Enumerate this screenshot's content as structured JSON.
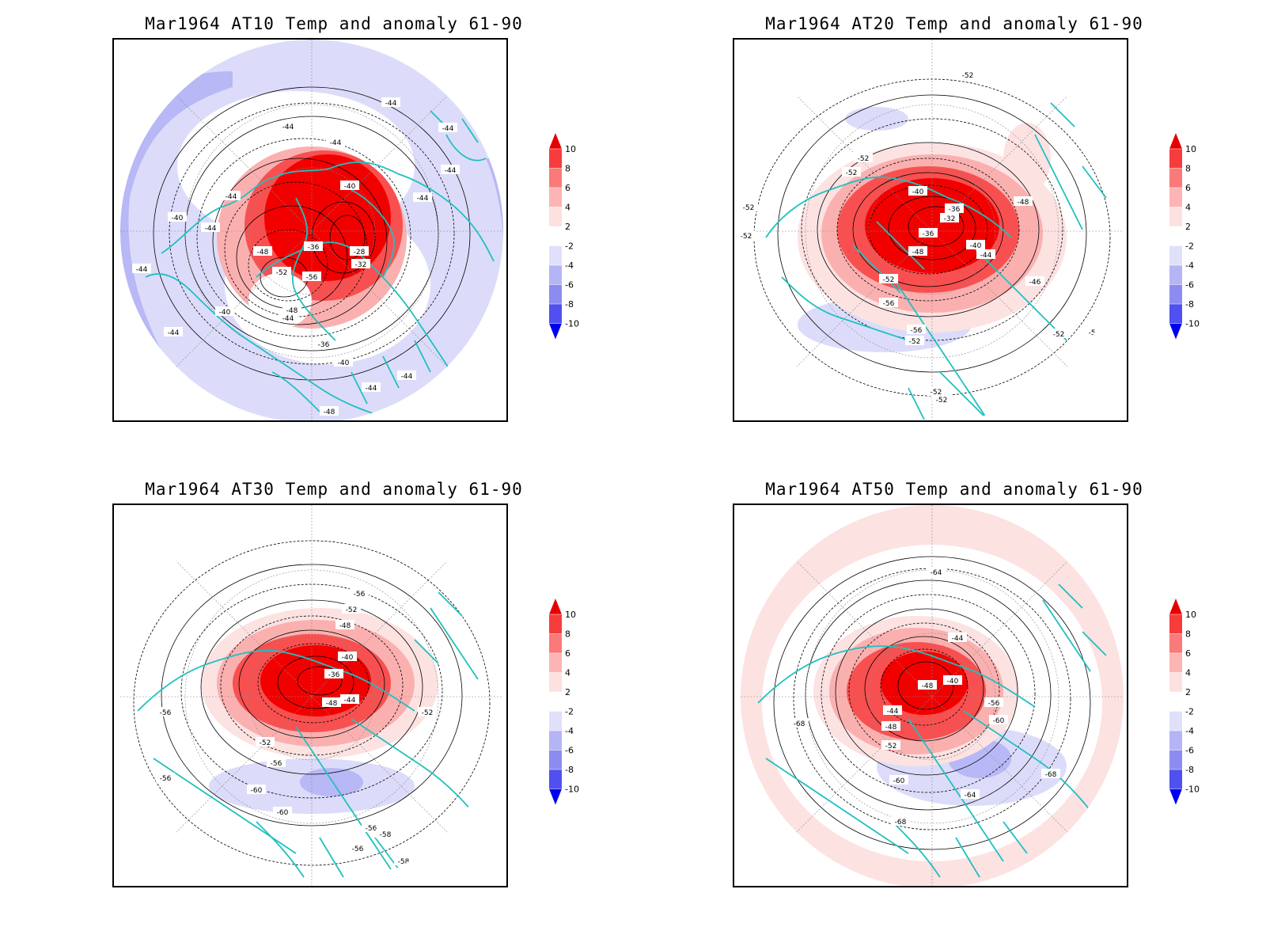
{
  "panels": [
    {
      "id": "p1",
      "title": "Mar1964 AT10 Temp and anomaly 61-90",
      "contour_labels": [
        "-44",
        "-44",
        "-44",
        "-44",
        "-44",
        "-44",
        "-40",
        "-44",
        "-40",
        "-44",
        "-48",
        "-36",
        "-28",
        "-32",
        "-52",
        "-56",
        "-40",
        "-48",
        "-44",
        "-44",
        "-36",
        "-40",
        "-44",
        "-44",
        "-48",
        "-44"
      ],
      "label_spots": [
        "label-a",
        "label-b",
        "label-c",
        "label-d",
        "label-e",
        "label-f",
        "label-g",
        "label-h",
        "label-i",
        "label-j",
        "label-k",
        "label-l",
        "label-m",
        "label-n",
        "label-o",
        "label-p",
        "label-q",
        "label-r",
        "label-s",
        "label-t",
        "label-u",
        "label-v",
        "label-w",
        "label-x",
        "label-y",
        "label-z"
      ]
    },
    {
      "id": "p2",
      "title": "Mar1964 AT20 Temp and anomaly 61-90",
      "contour_labels": [
        "-52",
        "-52",
        "-52",
        "-52",
        "-52",
        "-40",
        "-36",
        "-32",
        "-36",
        "-48",
        "-40",
        "-44",
        "-48",
        "-52",
        "-56",
        "-46",
        "-56",
        "-52",
        "-52",
        "-52",
        "-52",
        "-52"
      ]
    },
    {
      "id": "p3",
      "title": "Mar1964 AT30 Temp and anomaly 61-90",
      "contour_labels": [
        "-56",
        "-52",
        "-48",
        "-40",
        "-36",
        "-48",
        "-44",
        "-56",
        "-52",
        "-52",
        "-56",
        "-56",
        "-60",
        "-60",
        "-56",
        "-58",
        "-56",
        "-58"
      ]
    },
    {
      "id": "p4",
      "title": "Mar1964 AT50 Temp and anomaly 61-90",
      "contour_labels": [
        "-64",
        "-44",
        "-40",
        "-48",
        "-44",
        "-48",
        "-52",
        "-56",
        "-60",
        "-68",
        "-60",
        "-64",
        "-68",
        "-68"
      ]
    }
  ],
  "colorbar": {
    "labels": [
      "10",
      "8",
      "6",
      "4",
      "2",
      "-2",
      "-4",
      "-6",
      "-8",
      "-10"
    ],
    "colors": [
      "#e60000",
      "#f73c3c",
      "#fa7a7a",
      "#fcb4b4",
      "#fde0e0",
      "#ffffff",
      "#e0e0fb",
      "#b5b5f5",
      "#8c8cf0",
      "#5050f0",
      "#0000f0"
    ]
  },
  "map_colors": {
    "coast": "#20c0c0",
    "contour": "#000000",
    "warm_strong": "#f20000",
    "warm_mid": "#f85050",
    "warm_light": "#fbb0b0",
    "warm_faint": "#fde2e2",
    "cold_faint": "#dcdcfa",
    "cold_light": "#b8b8f6",
    "cold_mid": "#9c9cf2"
  }
}
